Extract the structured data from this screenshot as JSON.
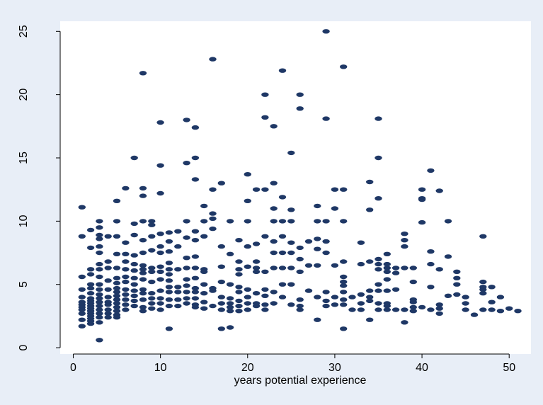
{
  "chart_data": {
    "type": "scatter",
    "title": "",
    "xlabel": "years potential experience",
    "ylabel": "",
    "xlim": [
      -1.5,
      52.5
    ],
    "ylim": [
      -0.5,
      25.8
    ],
    "x_ticks": [
      "0",
      "10",
      "20",
      "30",
      "40",
      "50"
    ],
    "y_ticks": [
      "0",
      "5",
      "10",
      "15",
      "20",
      "25"
    ],
    "grid": false,
    "legend": "none",
    "marker_color": "#1f3866",
    "background_color": "#e8eef7",
    "plot_background_color": "#ffffff",
    "points": [
      [
        1,
        11.1
      ],
      [
        1,
        8.8
      ],
      [
        1,
        5.6
      ],
      [
        1,
        4.6
      ],
      [
        1,
        4.0
      ],
      [
        1,
        3.6
      ],
      [
        1,
        3.4
      ],
      [
        1,
        3.2
      ],
      [
        1,
        3.0
      ],
      [
        1,
        2.7
      ],
      [
        1,
        2.2
      ],
      [
        1,
        1.7
      ],
      [
        2,
        9.3
      ],
      [
        2,
        7.9
      ],
      [
        2,
        6.2
      ],
      [
        2,
        5.8
      ],
      [
        2,
        5.0
      ],
      [
        2,
        4.7
      ],
      [
        2,
        4.3
      ],
      [
        2,
        3.9
      ],
      [
        2,
        3.7
      ],
      [
        2,
        3.5
      ],
      [
        2,
        3.3
      ],
      [
        2,
        3.1
      ],
      [
        2,
        2.9
      ],
      [
        2,
        2.7
      ],
      [
        2,
        2.5
      ],
      [
        2,
        2.3
      ],
      [
        2,
        2.1
      ],
      [
        2,
        1.9
      ],
      [
        3,
        10.0
      ],
      [
        3,
        9.5
      ],
      [
        3,
        8.9
      ],
      [
        3,
        8.6
      ],
      [
        3,
        8.0
      ],
      [
        3,
        7.5
      ],
      [
        3,
        6.6
      ],
      [
        3,
        6.2
      ],
      [
        3,
        5.6
      ],
      [
        3,
        5.0
      ],
      [
        3,
        4.6
      ],
      [
        3,
        4.2
      ],
      [
        3,
        3.9
      ],
      [
        3,
        3.6
      ],
      [
        3,
        3.3
      ],
      [
        3,
        3.0
      ],
      [
        3,
        2.7
      ],
      [
        3,
        2.4
      ],
      [
        3,
        2.0
      ],
      [
        3,
        0.6
      ],
      [
        4,
        8.8
      ],
      [
        4,
        6.8
      ],
      [
        4,
        6.3
      ],
      [
        4,
        5.3
      ],
      [
        4,
        4.6
      ],
      [
        4,
        4.0
      ],
      [
        4,
        3.6
      ],
      [
        4,
        3.4
      ],
      [
        4,
        3.0
      ],
      [
        4,
        2.7
      ],
      [
        4,
        2.4
      ],
      [
        5,
        11.6
      ],
      [
        5,
        10.0
      ],
      [
        5,
        8.8
      ],
      [
        5,
        7.4
      ],
      [
        5,
        6.3
      ],
      [
        5,
        5.5
      ],
      [
        5,
        5.1
      ],
      [
        5,
        4.7
      ],
      [
        5,
        4.4
      ],
      [
        5,
        4.1
      ],
      [
        5,
        3.8
      ],
      [
        5,
        3.5
      ],
      [
        5,
        3.2
      ],
      [
        5,
        2.9
      ],
      [
        5,
        2.6
      ],
      [
        5,
        2.4
      ],
      [
        6,
        12.6
      ],
      [
        6,
        8.3
      ],
      [
        6,
        7.4
      ],
      [
        6,
        6.8
      ],
      [
        6,
        6.2
      ],
      [
        6,
        5.6
      ],
      [
        6,
        5.2
      ],
      [
        6,
        4.6
      ],
      [
        6,
        4.2
      ],
      [
        6,
        3.8
      ],
      [
        6,
        3.4
      ],
      [
        6,
        3.0
      ],
      [
        7,
        15.0
      ],
      [
        7,
        9.8
      ],
      [
        7,
        8.9
      ],
      [
        7,
        7.3
      ],
      [
        7,
        6.6
      ],
      [
        7,
        6.1
      ],
      [
        7,
        5.5
      ],
      [
        7,
        5.0
      ],
      [
        7,
        4.5
      ],
      [
        7,
        4.1
      ],
      [
        7,
        3.7
      ],
      [
        7,
        3.3
      ],
      [
        8,
        21.7
      ],
      [
        8,
        12.6
      ],
      [
        8,
        12.0
      ],
      [
        8,
        10.0
      ],
      [
        8,
        8.5
      ],
      [
        8,
        7.5
      ],
      [
        8,
        6.5
      ],
      [
        8,
        6.2
      ],
      [
        8,
        5.9
      ],
      [
        8,
        5.4
      ],
      [
        8,
        4.6
      ],
      [
        8,
        4.3
      ],
      [
        8,
        3.8
      ],
      [
        8,
        3.2
      ],
      [
        8,
        2.9
      ],
      [
        9,
        10.0
      ],
      [
        9,
        9.7
      ],
      [
        9,
        8.8
      ],
      [
        9,
        7.7
      ],
      [
        9,
        6.3
      ],
      [
        9,
        6.0
      ],
      [
        9,
        5.2
      ],
      [
        9,
        4.3
      ],
      [
        9,
        3.9
      ],
      [
        9,
        3.5
      ],
      [
        9,
        3.1
      ],
      [
        10,
        17.8
      ],
      [
        10,
        14.4
      ],
      [
        10,
        12.2
      ],
      [
        10,
        9.0
      ],
      [
        10,
        8.0
      ],
      [
        10,
        7.5
      ],
      [
        10,
        6.4
      ],
      [
        10,
        6.0
      ],
      [
        10,
        5.4
      ],
      [
        10,
        4.5
      ],
      [
        10,
        3.9
      ],
      [
        10,
        3.5
      ],
      [
        10,
        3.0
      ],
      [
        11,
        9.1
      ],
      [
        11,
        8.4
      ],
      [
        11,
        7.6
      ],
      [
        11,
        6.7
      ],
      [
        11,
        6.2
      ],
      [
        11,
        5.8
      ],
      [
        11,
        5.3
      ],
      [
        11,
        4.8
      ],
      [
        11,
        4.4
      ],
      [
        11,
        3.8
      ],
      [
        11,
        3.3
      ],
      [
        11,
        1.5
      ],
      [
        12,
        9.2
      ],
      [
        12,
        8.0
      ],
      [
        12,
        6.2
      ],
      [
        12,
        4.8
      ],
      [
        12,
        4.4
      ],
      [
        12,
        3.8
      ],
      [
        12,
        3.3
      ],
      [
        13,
        18.0
      ],
      [
        13,
        14.6
      ],
      [
        13,
        10.0
      ],
      [
        13,
        8.7
      ],
      [
        13,
        7.1
      ],
      [
        13,
        6.3
      ],
      [
        13,
        5.4
      ],
      [
        13,
        4.9
      ],
      [
        13,
        4.4
      ],
      [
        13,
        3.9
      ],
      [
        13,
        3.5
      ],
      [
        14,
        17.4
      ],
      [
        14,
        15.0
      ],
      [
        14,
        13.3
      ],
      [
        14,
        9.2
      ],
      [
        14,
        8.5
      ],
      [
        14,
        7.2
      ],
      [
        14,
        6.3
      ],
      [
        14,
        5.5
      ],
      [
        14,
        4.7
      ],
      [
        14,
        4.4
      ],
      [
        14,
        3.9
      ],
      [
        14,
        3.4
      ],
      [
        14,
        3.2
      ],
      [
        15,
        11.2
      ],
      [
        15,
        10.0
      ],
      [
        15,
        8.8
      ],
      [
        15,
        6.2
      ],
      [
        15,
        6.0
      ],
      [
        15,
        5.0
      ],
      [
        15,
        4.3
      ],
      [
        15,
        3.6
      ],
      [
        15,
        3.1
      ],
      [
        16,
        22.8
      ],
      [
        16,
        12.5
      ],
      [
        16,
        10.6
      ],
      [
        16,
        10.2
      ],
      [
        16,
        9.4
      ],
      [
        16,
        4.7
      ],
      [
        16,
        4.5
      ],
      [
        16,
        3.3
      ],
      [
        17,
        13.0
      ],
      [
        17,
        8.0
      ],
      [
        17,
        6.4
      ],
      [
        17,
        5.2
      ],
      [
        17,
        4.0
      ],
      [
        17,
        3.5
      ],
      [
        17,
        3.0
      ],
      [
        17,
        1.5
      ],
      [
        18,
        10.0
      ],
      [
        18,
        7.4
      ],
      [
        18,
        5.0
      ],
      [
        18,
        3.9
      ],
      [
        18,
        3.5
      ],
      [
        18,
        3.2
      ],
      [
        18,
        2.9
      ],
      [
        18,
        1.6
      ],
      [
        19,
        8.5
      ],
      [
        19,
        6.8
      ],
      [
        19,
        6.2
      ],
      [
        19,
        5.8
      ],
      [
        19,
        4.8
      ],
      [
        19,
        4.4
      ],
      [
        19,
        3.7
      ],
      [
        19,
        3.3
      ],
      [
        19,
        2.9
      ],
      [
        20,
        13.7
      ],
      [
        20,
        11.6
      ],
      [
        20,
        10.0
      ],
      [
        20,
        8.0
      ],
      [
        20,
        6.4
      ],
      [
        20,
        4.6
      ],
      [
        20,
        4.0
      ],
      [
        20,
        3.5
      ],
      [
        20,
        3.0
      ],
      [
        21,
        12.5
      ],
      [
        21,
        8.2
      ],
      [
        21,
        6.8
      ],
      [
        21,
        6.3
      ],
      [
        21,
        6.0
      ],
      [
        21,
        4.3
      ],
      [
        21,
        3.5
      ],
      [
        21,
        3.3
      ],
      [
        22,
        20.0
      ],
      [
        22,
        18.2
      ],
      [
        22,
        12.5
      ],
      [
        22,
        8.8
      ],
      [
        22,
        6.0
      ],
      [
        22,
        4.6
      ],
      [
        22,
        4.1
      ],
      [
        22,
        3.4
      ],
      [
        22,
        3.0
      ],
      [
        23,
        17.5
      ],
      [
        23,
        13.0
      ],
      [
        23,
        11.0
      ],
      [
        23,
        10.0
      ],
      [
        23,
        8.4
      ],
      [
        23,
        7.5
      ],
      [
        23,
        6.3
      ],
      [
        23,
        4.4
      ],
      [
        23,
        3.5
      ],
      [
        24,
        21.9
      ],
      [
        24,
        11.9
      ],
      [
        24,
        10.0
      ],
      [
        24,
        8.8
      ],
      [
        24,
        7.5
      ],
      [
        24,
        6.3
      ],
      [
        24,
        5.0
      ],
      [
        24,
        4.0
      ],
      [
        25,
        15.4
      ],
      [
        25,
        10.9
      ],
      [
        25,
        10.0
      ],
      [
        25,
        8.3
      ],
      [
        25,
        7.5
      ],
      [
        25,
        6.3
      ],
      [
        25,
        5.0
      ],
      [
        25,
        3.4
      ],
      [
        26,
        20.0
      ],
      [
        26,
        18.9
      ],
      [
        26,
        7.9
      ],
      [
        26,
        7.0
      ],
      [
        26,
        6.0
      ],
      [
        26,
        3.8
      ],
      [
        26,
        3.3
      ],
      [
        26,
        3.0
      ],
      [
        27,
        8.4
      ],
      [
        27,
        6.5
      ],
      [
        27,
        4.5
      ],
      [
        28,
        11.2
      ],
      [
        28,
        10.0
      ],
      [
        28,
        8.6
      ],
      [
        28,
        7.8
      ],
      [
        28,
        6.5
      ],
      [
        28,
        4.0
      ],
      [
        28,
        2.2
      ],
      [
        29,
        25.0
      ],
      [
        29,
        18.1
      ],
      [
        29,
        10.0
      ],
      [
        29,
        8.4
      ],
      [
        29,
        7.5
      ],
      [
        29,
        4.4
      ],
      [
        29,
        3.7
      ],
      [
        29,
        3.3
      ],
      [
        30,
        12.5
      ],
      [
        30,
        11.0
      ],
      [
        30,
        6.5
      ],
      [
        30,
        4.0
      ],
      [
        30,
        3.4
      ],
      [
        31,
        22.2
      ],
      [
        31,
        12.5
      ],
      [
        31,
        10.0
      ],
      [
        31,
        6.8
      ],
      [
        31,
        5.6
      ],
      [
        31,
        5.2
      ],
      [
        31,
        4.9
      ],
      [
        31,
        4.4
      ],
      [
        31,
        3.8
      ],
      [
        31,
        3.4
      ],
      [
        31,
        1.5
      ],
      [
        32,
        4.0
      ],
      [
        32,
        3.0
      ],
      [
        33,
        8.3
      ],
      [
        33,
        6.6
      ],
      [
        33,
        4.2
      ],
      [
        33,
        3.5
      ],
      [
        33,
        3.0
      ],
      [
        34,
        13.1
      ],
      [
        34,
        10.9
      ],
      [
        34,
        6.8
      ],
      [
        34,
        4.5
      ],
      [
        34,
        4.0
      ],
      [
        34,
        3.7
      ],
      [
        34,
        2.2
      ],
      [
        35,
        18.1
      ],
      [
        35,
        15.0
      ],
      [
        35,
        11.8
      ],
      [
        35,
        7.0
      ],
      [
        35,
        6.6
      ],
      [
        35,
        6.2
      ],
      [
        35,
        5.0
      ],
      [
        35,
        4.5
      ],
      [
        35,
        3.5
      ],
      [
        35,
        3.0
      ],
      [
        36,
        7.4
      ],
      [
        36,
        6.6
      ],
      [
        36,
        6.3
      ],
      [
        36,
        6.0
      ],
      [
        36,
        5.4
      ],
      [
        36,
        4.5
      ],
      [
        36,
        3.5
      ],
      [
        36,
        3.3
      ],
      [
        36,
        3.0
      ],
      [
        37,
        6.3
      ],
      [
        37,
        5.9
      ],
      [
        37,
        4.6
      ],
      [
        37,
        3.0
      ],
      [
        38,
        9.0
      ],
      [
        38,
        8.5
      ],
      [
        38,
        8.0
      ],
      [
        38,
        6.3
      ],
      [
        38,
        3.0
      ],
      [
        38,
        2.0
      ],
      [
        39,
        6.3
      ],
      [
        39,
        5.2
      ],
      [
        39,
        3.8
      ],
      [
        39,
        3.6
      ],
      [
        39,
        3.2
      ],
      [
        39,
        2.9
      ],
      [
        40,
        12.5
      ],
      [
        40,
        11.8
      ],
      [
        40,
        11.7
      ],
      [
        40,
        9.9
      ],
      [
        40,
        3.2
      ],
      [
        41,
        14.0
      ],
      [
        41,
        7.6
      ],
      [
        41,
        6.6
      ],
      [
        41,
        4.8
      ],
      [
        41,
        3.0
      ],
      [
        42,
        12.4
      ],
      [
        42,
        6.2
      ],
      [
        42,
        3.4
      ],
      [
        42,
        3.1
      ],
      [
        42,
        2.7
      ],
      [
        43,
        10.0
      ],
      [
        43,
        7.2
      ],
      [
        43,
        4.1
      ],
      [
        44,
        6.0
      ],
      [
        44,
        5.5
      ],
      [
        44,
        5.0
      ],
      [
        44,
        4.2
      ],
      [
        45,
        4.0
      ],
      [
        45,
        3.5
      ],
      [
        45,
        3.0
      ],
      [
        46,
        2.6
      ],
      [
        47,
        8.8
      ],
      [
        47,
        5.2
      ],
      [
        47,
        4.8
      ],
      [
        47,
        4.6
      ],
      [
        47,
        4.3
      ],
      [
        47,
        3.0
      ],
      [
        48,
        4.8
      ],
      [
        48,
        3.6
      ],
      [
        48,
        3.0
      ],
      [
        49,
        4.0
      ],
      [
        49,
        2.9
      ],
      [
        50,
        3.1
      ],
      [
        51,
        2.9
      ]
    ]
  }
}
